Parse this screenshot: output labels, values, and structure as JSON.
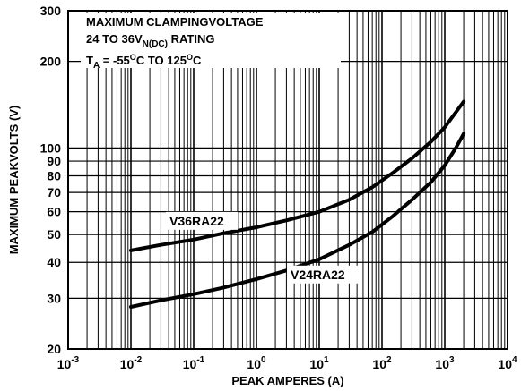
{
  "chart_data": {
    "type": "line",
    "title_lines": [
      "MAXIMUM CLAMPINGVOLTAGE",
      "24 TO 36V",
      "RATING",
      "T",
      "= -55",
      "C TO 125",
      "C"
    ],
    "title": {
      "line1": "MAXIMUM CLAMPINGVOLTAGE",
      "line2_main": "24 TO 36V",
      "line2_sub": "N(DC)",
      "line2_tail": " RATING",
      "line3_t": "T",
      "line3_sub": "A",
      "line3_mid": " = -55",
      "line3_deg1": "O",
      "line3_mid2": "C TO 125",
      "line3_deg2": "O",
      "line3_end": "C"
    },
    "xlabel": "PEAK AMPERES (A)",
    "ylabel": "MAXIMUM PEAKVOLTS (V)",
    "x_scale": "log",
    "y_scale": "log",
    "xlim": [
      0.001,
      10000
    ],
    "ylim": [
      20,
      300
    ],
    "x_ticks": [
      {
        "base": "10",
        "exp": "-3",
        "value": 0.001
      },
      {
        "base": "10",
        "exp": "-2",
        "value": 0.01
      },
      {
        "base": "10",
        "exp": "-1",
        "value": 0.1
      },
      {
        "base": "10",
        "exp": "0",
        "value": 1
      },
      {
        "base": "10",
        "exp": "1",
        "value": 10
      },
      {
        "base": "10",
        "exp": "2",
        "value": 100
      },
      {
        "base": "10",
        "exp": "3",
        "value": 1000
      },
      {
        "base": "10",
        "exp": "4",
        "value": 10000
      }
    ],
    "y_ticks": [
      {
        "label": "20",
        "value": 20
      },
      {
        "label": "30",
        "value": 30
      },
      {
        "label": "40",
        "value": 40
      },
      {
        "label": "50",
        "value": 50
      },
      {
        "label": "60",
        "value": 60
      },
      {
        "label": "70",
        "value": 70
      },
      {
        "label": "80",
        "value": 80
      },
      {
        "label": "90",
        "value": 90
      },
      {
        "label": "100",
        "value": 100
      },
      {
        "label": "200",
        "value": 200
      },
      {
        "label": "300",
        "value": 300
      }
    ],
    "grid": true,
    "series": [
      {
        "name": "V36RA22",
        "x": [
          0.01,
          0.03,
          0.1,
          0.3,
          1,
          3,
          10,
          30,
          70,
          150,
          300,
          600,
          1000,
          1500,
          2000
        ],
        "y": [
          44,
          46,
          48,
          50.5,
          53,
          56,
          60,
          66,
          73,
          82,
          92,
          105,
          118,
          133,
          145
        ]
      },
      {
        "name": "V24RA22",
        "x": [
          0.01,
          0.03,
          0.1,
          0.3,
          1,
          3,
          10,
          30,
          70,
          150,
          300,
          600,
          1000,
          1500,
          2000
        ],
        "y": [
          28,
          29.5,
          31,
          32.7,
          35,
          37.5,
          41,
          46,
          51,
          58,
          66,
          76,
          87,
          100,
          112
        ]
      }
    ]
  }
}
